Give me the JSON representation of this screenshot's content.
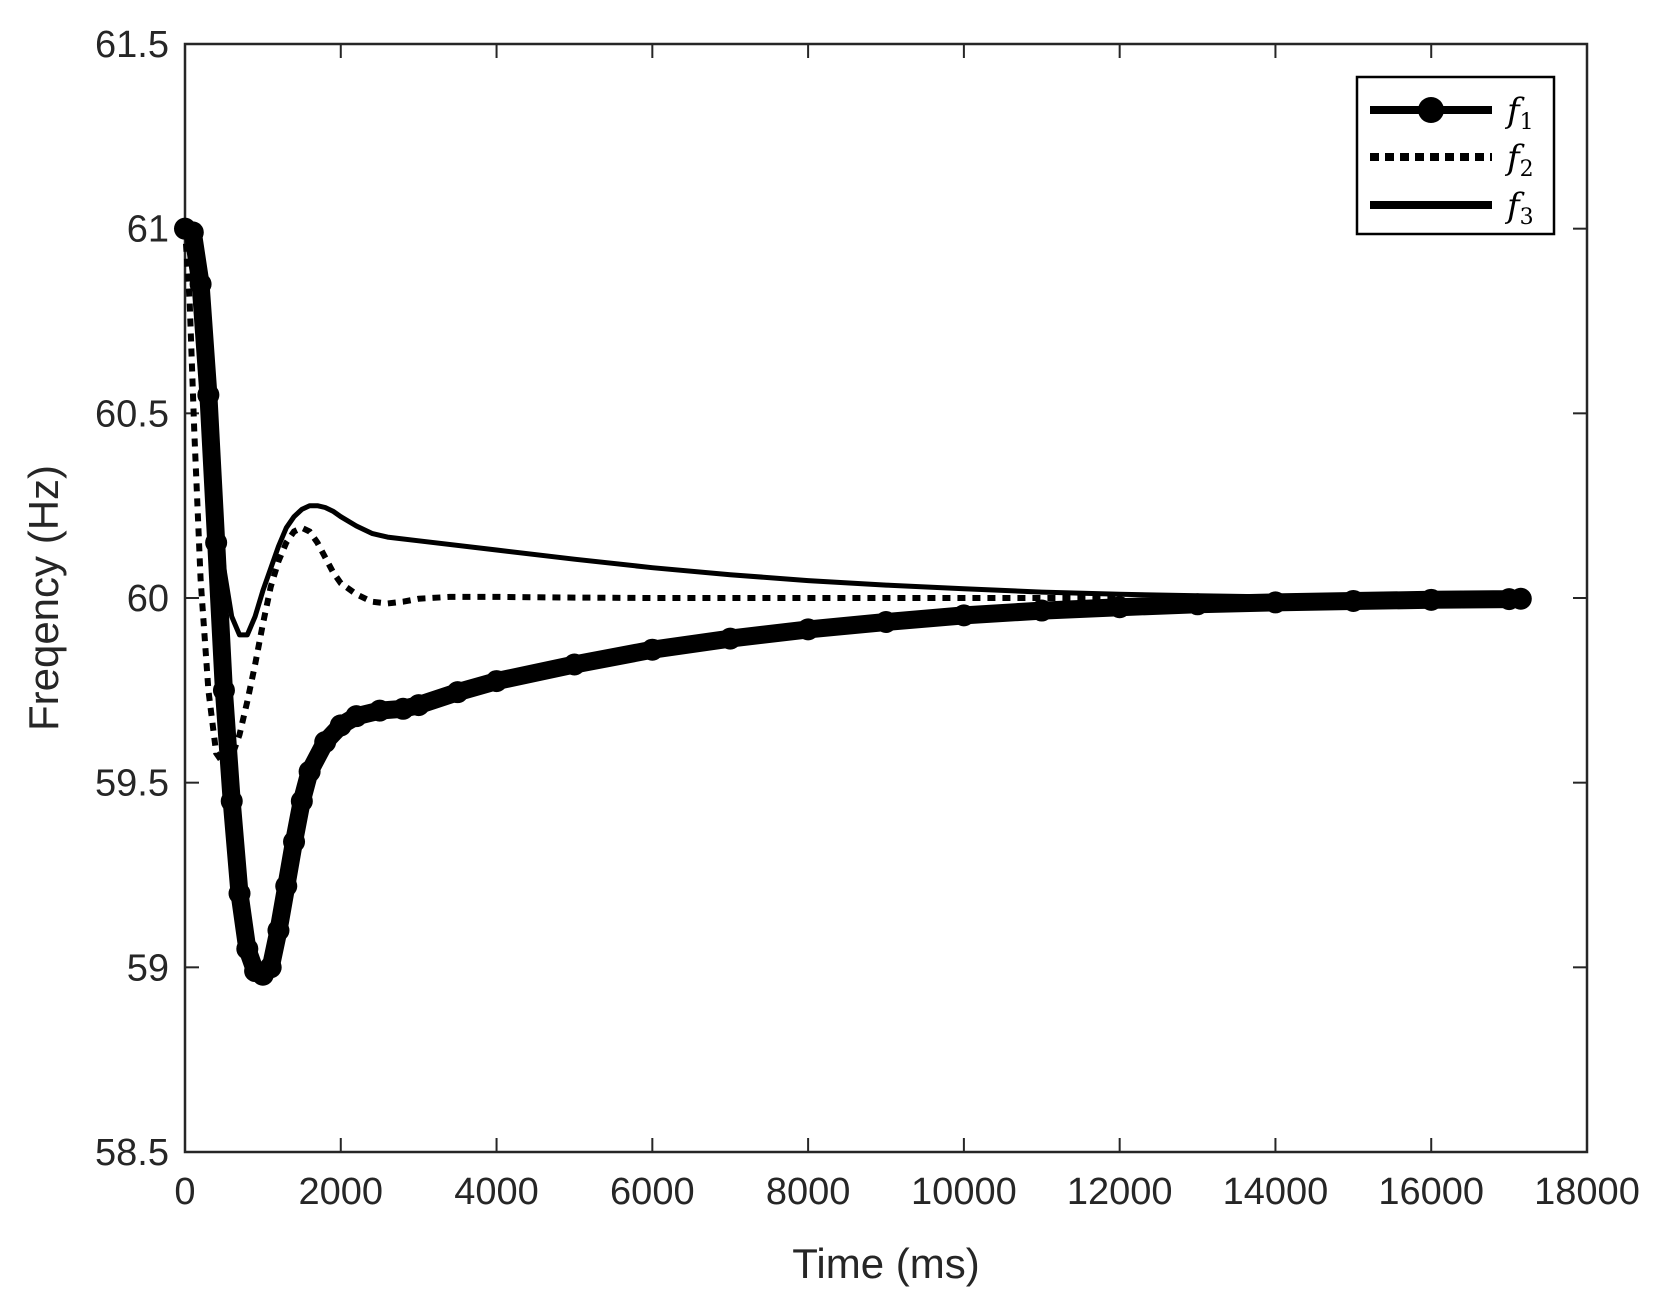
{
  "chart_data": {
    "type": "line",
    "title": "",
    "xlabel": "Time (ms)",
    "ylabel": "Freqency (Hz)",
    "xlim": [
      0,
      18000
    ],
    "ylim": [
      58.5,
      61.5
    ],
    "xticks": [
      0,
      2000,
      4000,
      6000,
      8000,
      10000,
      12000,
      14000,
      16000,
      18000
    ],
    "yticks": [
      58.5,
      59,
      59.5,
      60,
      60.5,
      61,
      61.5
    ],
    "xtick_labels": [
      "0",
      "2000",
      "4000",
      "6000",
      "8000",
      "10000",
      "12000",
      "14000",
      "16000",
      "18000"
    ],
    "ytick_labels": [
      "58.5",
      "59",
      "59.5",
      "60",
      "60.5",
      "61",
      "61.5"
    ],
    "grid": false,
    "legend_position": "top-right",
    "colors": {
      "line": "#000000",
      "axis": "#262626"
    },
    "series": [
      {
        "name": "f",
        "subscript": "1",
        "style": "thick-marker",
        "points": [
          [
            0,
            61.0
          ],
          [
            100,
            60.99
          ],
          [
            200,
            60.85
          ],
          [
            300,
            60.55
          ],
          [
            400,
            60.15
          ],
          [
            500,
            59.75
          ],
          [
            600,
            59.45
          ],
          [
            700,
            59.2
          ],
          [
            800,
            59.05
          ],
          [
            900,
            58.99
          ],
          [
            1000,
            58.98
          ],
          [
            1100,
            59.0
          ],
          [
            1200,
            59.1
          ],
          [
            1300,
            59.22
          ],
          [
            1400,
            59.34
          ],
          [
            1500,
            59.45
          ],
          [
            1600,
            59.53
          ],
          [
            1800,
            59.61
          ],
          [
            2000,
            59.655
          ],
          [
            2200,
            59.68
          ],
          [
            2500,
            59.695
          ],
          [
            2800,
            59.7
          ],
          [
            3000,
            59.71
          ],
          [
            3500,
            59.745
          ],
          [
            4000,
            59.775
          ],
          [
            5000,
            59.82
          ],
          [
            6000,
            59.86
          ],
          [
            7000,
            59.89
          ],
          [
            8000,
            59.915
          ],
          [
            9000,
            59.935
          ],
          [
            10000,
            59.953
          ],
          [
            11000,
            59.966
          ],
          [
            12000,
            59.975
          ],
          [
            13000,
            59.983
          ],
          [
            14000,
            59.988
          ],
          [
            15000,
            59.992
          ],
          [
            16000,
            59.995
          ],
          [
            17000,
            59.997
          ],
          [
            17150,
            59.998
          ]
        ]
      },
      {
        "name": "f",
        "subscript": "2",
        "style": "dotted",
        "points": [
          [
            0,
            61.0
          ],
          [
            60,
            60.8
          ],
          [
            120,
            60.45
          ],
          [
            200,
            60.05
          ],
          [
            300,
            59.75
          ],
          [
            400,
            59.58
          ],
          [
            500,
            59.55
          ],
          [
            600,
            59.57
          ],
          [
            700,
            59.63
          ],
          [
            800,
            59.72
          ],
          [
            900,
            59.82
          ],
          [
            1000,
            59.93
          ],
          [
            1100,
            60.03
          ],
          [
            1200,
            60.1
          ],
          [
            1300,
            60.15
          ],
          [
            1400,
            60.18
          ],
          [
            1500,
            60.19
          ],
          [
            1600,
            60.18
          ],
          [
            1700,
            60.15
          ],
          [
            1800,
            60.11
          ],
          [
            1900,
            60.07
          ],
          [
            2000,
            60.04
          ],
          [
            2200,
            60.01
          ],
          [
            2400,
            59.99
          ],
          [
            2600,
            59.985
          ],
          [
            2800,
            59.99
          ],
          [
            3000,
            59.998
          ],
          [
            3400,
            60.003
          ],
          [
            4000,
            60.003
          ],
          [
            5000,
            60.001
          ],
          [
            6000,
            60.0
          ],
          [
            8000,
            60.0
          ],
          [
            10000,
            60.0
          ],
          [
            12000,
            60.0
          ]
        ]
      },
      {
        "name": "f",
        "subscript": "3",
        "style": "solid",
        "points": [
          [
            0,
            61.0
          ],
          [
            100,
            60.97
          ],
          [
            200,
            60.82
          ],
          [
            300,
            60.55
          ],
          [
            400,
            60.3
          ],
          [
            500,
            60.08
          ],
          [
            600,
            59.95
          ],
          [
            700,
            59.9
          ],
          [
            800,
            59.9
          ],
          [
            900,
            59.95
          ],
          [
            1000,
            60.02
          ],
          [
            1100,
            60.08
          ],
          [
            1200,
            60.14
          ],
          [
            1300,
            60.19
          ],
          [
            1400,
            60.22
          ],
          [
            1500,
            60.24
          ],
          [
            1600,
            60.25
          ],
          [
            1700,
            60.25
          ],
          [
            1800,
            60.245
          ],
          [
            1900,
            60.235
          ],
          [
            2000,
            60.22
          ],
          [
            2200,
            60.195
          ],
          [
            2400,
            60.175
          ],
          [
            2600,
            60.165
          ],
          [
            3000,
            60.155
          ],
          [
            4000,
            60.13
          ],
          [
            5000,
            60.105
          ],
          [
            6000,
            60.082
          ],
          [
            7000,
            60.063
          ],
          [
            8000,
            60.047
          ],
          [
            9000,
            60.035
          ],
          [
            10000,
            60.025
          ],
          [
            11000,
            60.016
          ],
          [
            12000,
            60.01
          ],
          [
            13000,
            60.006
          ],
          [
            14000,
            60.003
          ],
          [
            15000,
            60.001
          ],
          [
            16000,
            60.0
          ],
          [
            17000,
            60.0
          ]
        ]
      }
    ]
  }
}
